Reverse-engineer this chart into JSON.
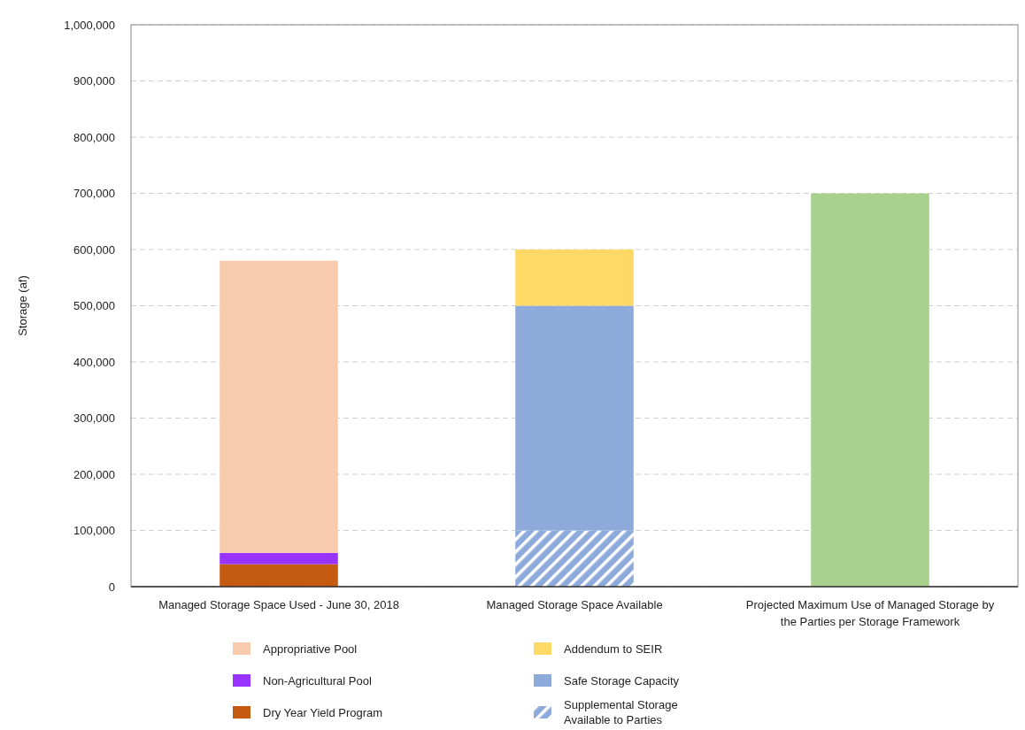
{
  "chart_data": {
    "type": "bar",
    "stacked": true,
    "ylabel": "Storage (af)",
    "categories": [
      "Managed Storage Space Used - June 30, 2018",
      "Managed Storage Space Available",
      "Projected Maximum Use of Managed Storage by the Parties per Storage Framework"
    ],
    "series": [
      {
        "name": "Dry Year Yield Program",
        "color": "#c55a11",
        "values": [
          40000,
          0,
          0
        ]
      },
      {
        "name": "Non-Agricultural Pool",
        "color": "#9933ff",
        "values": [
          20000,
          0,
          0
        ]
      },
      {
        "name": "Appropriative Pool",
        "color": "#f8cbad",
        "values": [
          520000,
          0,
          0
        ]
      },
      {
        "name": "Supplemental Storage Available to Parties",
        "color": "#8eaadb",
        "values": [
          0,
          100000,
          0
        ]
      },
      {
        "name": "Safe Storage Capacity",
        "color": "#8eaadb",
        "values": [
          0,
          400000,
          0
        ]
      },
      {
        "name": "Addendum to SEIR",
        "color": "#ffd966",
        "values": [
          0,
          100000,
          0
        ]
      },
      {
        "color": "#a9d18e",
        "values": [
          0,
          0,
          700000
        ]
      }
    ],
    "ylim": [
      0,
      1000000
    ],
    "yticks": [
      {
        "value": 0,
        "label": "0"
      },
      {
        "value": 100000,
        "label": "100,000"
      },
      {
        "value": 200000,
        "label": "200,000"
      },
      {
        "value": 300000,
        "label": "300,000"
      },
      {
        "value": 400000,
        "label": "400,000"
      },
      {
        "value": 500000,
        "label": "500,000"
      },
      {
        "value": 600000,
        "label": "600,000"
      },
      {
        "value": 700000,
        "label": "700,000"
      },
      {
        "value": 800000,
        "label": "800,000"
      },
      {
        "value": 900000,
        "label": "900,000"
      },
      {
        "value": 1000000,
        "label": "1,000,000"
      }
    ],
    "grid": "y",
    "legend": "bottom left"
  }
}
